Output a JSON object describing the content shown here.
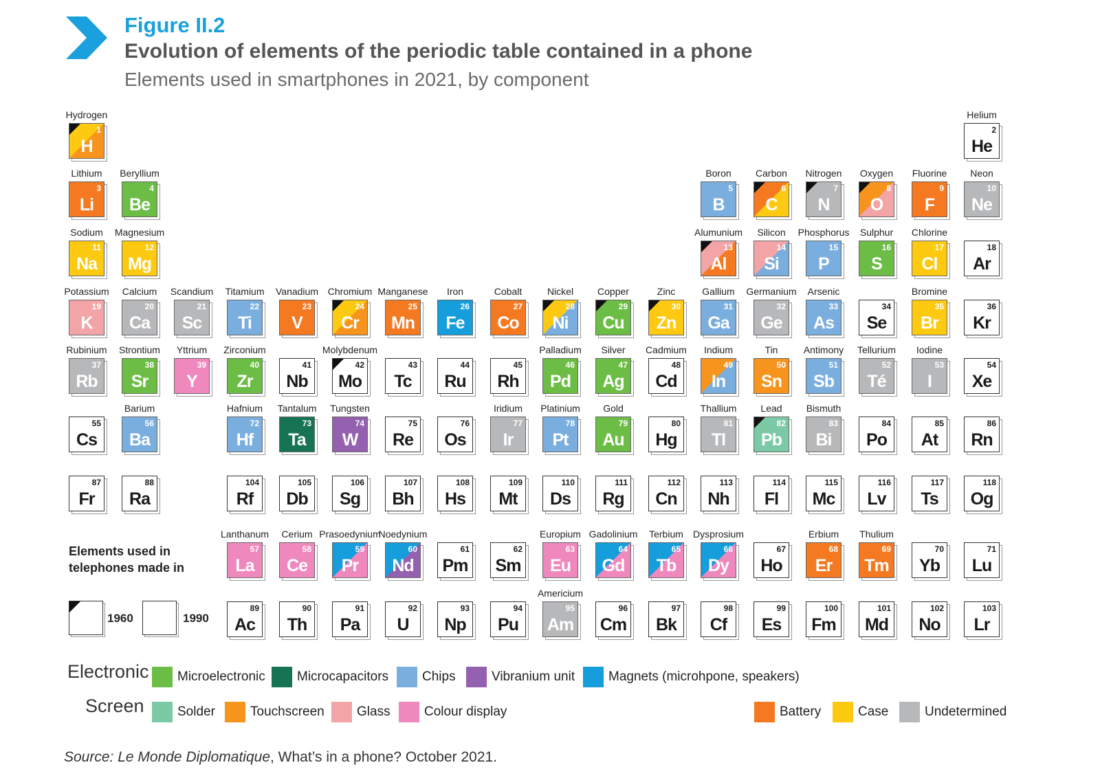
{
  "figure": {
    "label": "Figure II.2",
    "title": "Evolution of elements of the periodic table contained in a phone",
    "subtitle": "Elements used in smartphones in 2021, by component"
  },
  "colors": {
    "microelectronic": "#6cbd45",
    "microcapacitors": "#167455",
    "chips": "#7aaede",
    "vibranium": "#9460b0",
    "magnets": "#159ddc",
    "solder": "#7cc9a6",
    "touchscreen": "#f7941d",
    "glass": "#f3a4a7",
    "colour_display": "#ef88bd",
    "battery": "#f47921",
    "case": "#fdc911",
    "undetermined": "#b7b8ba"
  },
  "elements": [
    {
      "s": "H",
      "n": 1,
      "name": "Hydrogen",
      "r": 0,
      "c": 0,
      "fill": [
        "case",
        "touchscreen"
      ],
      "since": "1960"
    },
    {
      "s": "He",
      "n": 2,
      "name": "Helium",
      "r": 0,
      "c": 17
    },
    {
      "s": "Li",
      "n": 3,
      "name": "Lithium",
      "r": 1,
      "c": 0,
      "fill": [
        "battery"
      ]
    },
    {
      "s": "Be",
      "n": 4,
      "name": "Beryllium",
      "r": 1,
      "c": 1,
      "fill": [
        "microelectronic"
      ]
    },
    {
      "s": "B",
      "n": 5,
      "name": "Boron",
      "r": 1,
      "c": 12,
      "fill": [
        "chips"
      ]
    },
    {
      "s": "C",
      "n": 6,
      "name": "Carbon",
      "r": 1,
      "c": 13,
      "fill": [
        "battery",
        "case"
      ],
      "since": "1960"
    },
    {
      "s": "N",
      "n": 7,
      "name": "Nitrogen",
      "r": 1,
      "c": 14,
      "fill": [
        "undetermined"
      ],
      "since": "1960"
    },
    {
      "s": "O",
      "n": 8,
      "name": "Oxygen",
      "r": 1,
      "c": 15,
      "fill": [
        "touchscreen",
        "glass"
      ],
      "since": "1960"
    },
    {
      "s": "F",
      "n": 9,
      "name": "Fluorine",
      "r": 1,
      "c": 16,
      "fill": [
        "battery"
      ]
    },
    {
      "s": "Ne",
      "n": 10,
      "name": "Neon",
      "r": 1,
      "c": 17,
      "fill": [
        "undetermined"
      ]
    },
    {
      "s": "Na",
      "n": 11,
      "name": "Sodium",
      "r": 2,
      "c": 0,
      "fill": [
        "case"
      ]
    },
    {
      "s": "Mg",
      "n": 12,
      "name": "Magnesium",
      "r": 2,
      "c": 1,
      "fill": [
        "case"
      ]
    },
    {
      "s": "Al",
      "n": 13,
      "name": "Alumunium",
      "r": 2,
      "c": 12,
      "fill": [
        "glass",
        "battery"
      ],
      "since": "1960"
    },
    {
      "s": "Si",
      "n": 14,
      "name": "Silicon",
      "r": 2,
      "c": 13,
      "fill": [
        "glass",
        "chips"
      ]
    },
    {
      "s": "P",
      "n": 15,
      "name": "Phosphorus",
      "r": 2,
      "c": 14,
      "fill": [
        "chips"
      ]
    },
    {
      "s": "S",
      "n": 16,
      "name": "Sulphur",
      "r": 2,
      "c": 15,
      "fill": [
        "microelectronic"
      ]
    },
    {
      "s": "Cl",
      "n": 17,
      "name": "Chlorine",
      "r": 2,
      "c": 16,
      "fill": [
        "case"
      ]
    },
    {
      "s": "Ar",
      "n": 18,
      "name": "",
      "r": 2,
      "c": 17
    },
    {
      "s": "K",
      "n": 19,
      "name": "Potassium",
      "r": 3,
      "c": 0,
      "fill": [
        "glass"
      ]
    },
    {
      "s": "Ca",
      "n": 20,
      "name": "Calcium",
      "r": 3,
      "c": 1,
      "fill": [
        "undetermined"
      ]
    },
    {
      "s": "Sc",
      "n": 21,
      "name": "Scandium",
      "r": 3,
      "c": 2,
      "fill": [
        "undetermined"
      ]
    },
    {
      "s": "Ti",
      "n": 22,
      "name": "Titamium",
      "r": 3,
      "c": 3,
      "fill": [
        "chips"
      ]
    },
    {
      "s": "V",
      "n": 23,
      "name": "Vanadium",
      "r": 3,
      "c": 4,
      "fill": [
        "battery"
      ]
    },
    {
      "s": "Cr",
      "n": 24,
      "name": "Chromium",
      "r": 3,
      "c": 5,
      "fill": [
        "case",
        "touchscreen"
      ],
      "since": "1960"
    },
    {
      "s": "Mn",
      "n": 25,
      "name": "Manganese",
      "r": 3,
      "c": 6,
      "fill": [
        "battery"
      ]
    },
    {
      "s": "Fe",
      "n": 26,
      "name": "Iron",
      "r": 3,
      "c": 7,
      "fill": [
        "magnets"
      ]
    },
    {
      "s": "Co",
      "n": 27,
      "name": "Cobalt",
      "r": 3,
      "c": 8,
      "fill": [
        "battery"
      ]
    },
    {
      "s": "Ni",
      "n": 28,
      "name": "Nickel",
      "r": 3,
      "c": 9,
      "fill": [
        "case",
        "chips"
      ],
      "since": "1960"
    },
    {
      "s": "Cu",
      "n": 29,
      "name": "Copper",
      "r": 3,
      "c": 10,
      "fill": [
        "microelectronic"
      ],
      "since": "1960"
    },
    {
      "s": "Zn",
      "n": 30,
      "name": "Zinc",
      "r": 3,
      "c": 11,
      "fill": [
        "case"
      ],
      "since": "1960"
    },
    {
      "s": "Ga",
      "n": 31,
      "name": "Gallium",
      "r": 3,
      "c": 12,
      "fill": [
        "chips"
      ]
    },
    {
      "s": "Ge",
      "n": 32,
      "name": "Germanium",
      "r": 3,
      "c": 13,
      "fill": [
        "undetermined"
      ]
    },
    {
      "s": "As",
      "n": 33,
      "name": "Arsenic",
      "r": 3,
      "c": 14,
      "fill": [
        "chips"
      ]
    },
    {
      "s": "Se",
      "n": 34,
      "name": "",
      "r": 3,
      "c": 15
    },
    {
      "s": "Br",
      "n": 35,
      "name": "Bromine",
      "r": 3,
      "c": 16,
      "fill": [
        "case"
      ]
    },
    {
      "s": "Kr",
      "n": 36,
      "name": "",
      "r": 3,
      "c": 17
    },
    {
      "s": "Rb",
      "n": 37,
      "name": "Rubinium",
      "r": 4,
      "c": 0,
      "fill": [
        "undetermined"
      ]
    },
    {
      "s": "Sr",
      "n": 38,
      "name": "Strontium",
      "r": 4,
      "c": 1,
      "fill": [
        "microelectronic"
      ]
    },
    {
      "s": "Y",
      "n": 39,
      "name": "Yttrium",
      "r": 4,
      "c": 2,
      "fill": [
        "colour_display"
      ]
    },
    {
      "s": "Zr",
      "n": 40,
      "name": "Zirconium",
      "r": 4,
      "c": 3,
      "fill": [
        "microelectronic"
      ]
    },
    {
      "s": "Nb",
      "n": 41,
      "name": "",
      "r": 4,
      "c": 4
    },
    {
      "s": "Mo",
      "n": 42,
      "name": "Molybdenum",
      "r": 4,
      "c": 5,
      "since": "1960"
    },
    {
      "s": "Tc",
      "n": 43,
      "name": "",
      "r": 4,
      "c": 6
    },
    {
      "s": "Ru",
      "n": 44,
      "name": "",
      "r": 4,
      "c": 7
    },
    {
      "s": "Rh",
      "n": 45,
      "name": "",
      "r": 4,
      "c": 8
    },
    {
      "s": "Pd",
      "n": 46,
      "name": "Palladium",
      "r": 4,
      "c": 9,
      "fill": [
        "microelectronic"
      ]
    },
    {
      "s": "Ag",
      "n": 47,
      "name": "Silver",
      "r": 4,
      "c": 10,
      "fill": [
        "microelectronic"
      ]
    },
    {
      "s": "Cd",
      "n": 48,
      "name": "Cadmium",
      "r": 4,
      "c": 11
    },
    {
      "s": "In",
      "n": 49,
      "name": "Indium",
      "r": 4,
      "c": 12,
      "fill": [
        "touchscreen",
        "chips"
      ]
    },
    {
      "s": "Sn",
      "n": 50,
      "name": "Tin",
      "r": 4,
      "c": 13,
      "fill": [
        "touchscreen"
      ]
    },
    {
      "s": "Sb",
      "n": 51,
      "name": "Antimony",
      "r": 4,
      "c": 14,
      "fill": [
        "chips"
      ]
    },
    {
      "s": "Te",
      "n": 52,
      "name": "Tellurium",
      "r": 4,
      "c": 15,
      "fill": [
        "undetermined"
      ],
      "label": "Té"
    },
    {
      "s": "I",
      "n": 53,
      "name": "Iodine",
      "r": 4,
      "c": 16,
      "fill": [
        "undetermined"
      ]
    },
    {
      "s": "Xe",
      "n": 54,
      "name": "",
      "r": 4,
      "c": 17
    },
    {
      "s": "Cs",
      "n": 55,
      "name": "",
      "r": 5,
      "c": 0
    },
    {
      "s": "Ba",
      "n": 56,
      "name": "Barium",
      "r": 5,
      "c": 1,
      "fill": [
        "chips"
      ]
    },
    {
      "s": "Hf",
      "n": 72,
      "name": "Hafnium",
      "r": 5,
      "c": 3,
      "fill": [
        "chips"
      ]
    },
    {
      "s": "Ta",
      "n": 73,
      "name": "Tantalum",
      "r": 5,
      "c": 4,
      "fill": [
        "microcapacitors"
      ]
    },
    {
      "s": "W",
      "n": 74,
      "name": "Tungsten",
      "r": 5,
      "c": 5,
      "fill": [
        "vibranium"
      ]
    },
    {
      "s": "Re",
      "n": 75,
      "name": "",
      "r": 5,
      "c": 6
    },
    {
      "s": "Os",
      "n": 76,
      "name": "",
      "r": 5,
      "c": 7
    },
    {
      "s": "Ir",
      "n": 77,
      "name": "Iridium",
      "r": 5,
      "c": 8,
      "fill": [
        "undetermined"
      ]
    },
    {
      "s": "Pt",
      "n": 78,
      "name": "Platinium",
      "r": 5,
      "c": 9,
      "fill": [
        "chips"
      ]
    },
    {
      "s": "Au",
      "n": 79,
      "name": "Gold",
      "r": 5,
      "c": 10,
      "fill": [
        "microelectronic"
      ]
    },
    {
      "s": "Hg",
      "n": 80,
      "name": "",
      "r": 5,
      "c": 11
    },
    {
      "s": "Tl",
      "n": 81,
      "name": "Thallium",
      "r": 5,
      "c": 12,
      "fill": [
        "undetermined"
      ]
    },
    {
      "s": "Pb",
      "n": 82,
      "name": "Lead",
      "r": 5,
      "c": 13,
      "fill": [
        "solder"
      ],
      "since": "1960"
    },
    {
      "s": "Bi",
      "n": 83,
      "name": "Bismuth",
      "r": 5,
      "c": 14,
      "fill": [
        "undetermined"
      ]
    },
    {
      "s": "Po",
      "n": 84,
      "name": "",
      "r": 5,
      "c": 15
    },
    {
      "s": "At",
      "n": 85,
      "name": "",
      "r": 5,
      "c": 16
    },
    {
      "s": "Rn",
      "n": 86,
      "name": "",
      "r": 5,
      "c": 17
    },
    {
      "s": "Fr",
      "n": 87,
      "name": "",
      "r": 6,
      "c": 0
    },
    {
      "s": "Ra",
      "n": 88,
      "name": "",
      "r": 6,
      "c": 1
    },
    {
      "s": "Rf",
      "n": 104,
      "name": "",
      "r": 6,
      "c": 3
    },
    {
      "s": "Db",
      "n": 105,
      "name": "",
      "r": 6,
      "c": 4
    },
    {
      "s": "Sg",
      "n": 106,
      "name": "",
      "r": 6,
      "c": 5
    },
    {
      "s": "Bh",
      "n": 107,
      "name": "",
      "r": 6,
      "c": 6
    },
    {
      "s": "Hs",
      "n": 108,
      "name": "",
      "r": 6,
      "c": 7
    },
    {
      "s": "Mt",
      "n": 109,
      "name": "",
      "r": 6,
      "c": 8
    },
    {
      "s": "Ds",
      "n": 110,
      "name": "",
      "r": 6,
      "c": 9
    },
    {
      "s": "Rg",
      "n": 111,
      "name": "",
      "r": 6,
      "c": 10
    },
    {
      "s": "Cn",
      "n": 112,
      "name": "",
      "r": 6,
      "c": 11
    },
    {
      "s": "Nh",
      "n": 113,
      "name": "",
      "r": 6,
      "c": 12
    },
    {
      "s": "Fl",
      "n": 114,
      "name": "",
      "r": 6,
      "c": 13
    },
    {
      "s": "Mc",
      "n": 115,
      "name": "",
      "r": 6,
      "c": 14
    },
    {
      "s": "Lv",
      "n": 116,
      "name": "",
      "r": 6,
      "c": 15
    },
    {
      "s": "Ts",
      "n": 117,
      "name": "",
      "r": 6,
      "c": 16
    },
    {
      "s": "Og",
      "n": 118,
      "name": "",
      "r": 6,
      "c": 17
    },
    {
      "s": "La",
      "n": 57,
      "name": "Lanthanum",
      "r": 7,
      "c": 3,
      "fill": [
        "colour_display"
      ]
    },
    {
      "s": "Ce",
      "n": 58,
      "name": "Cerium",
      "r": 7,
      "c": 4,
      "fill": [
        "colour_display"
      ]
    },
    {
      "s": "Pr",
      "n": 59,
      "name": "Prasoedynium",
      "r": 7,
      "c": 5,
      "fill": [
        "magnets",
        "colour_display"
      ]
    },
    {
      "s": "Nd",
      "n": 60,
      "name": "Noedynium",
      "r": 7,
      "c": 6,
      "fill": [
        "magnets",
        "vibranium"
      ]
    },
    {
      "s": "Pm",
      "n": 61,
      "name": "",
      "r": 7,
      "c": 7
    },
    {
      "s": "Sm",
      "n": 62,
      "name": "",
      "r": 7,
      "c": 8
    },
    {
      "s": "Eu",
      "n": 63,
      "name": "Europium",
      "r": 7,
      "c": 9,
      "fill": [
        "colour_display"
      ]
    },
    {
      "s": "Gd",
      "n": 64,
      "name": "Gadolinium",
      "r": 7,
      "c": 10,
      "fill": [
        "magnets",
        "colour_display"
      ]
    },
    {
      "s": "Tb",
      "n": 65,
      "name": "Terbium",
      "r": 7,
      "c": 11,
      "fill": [
        "magnets",
        "colour_display"
      ]
    },
    {
      "s": "Dy",
      "n": 66,
      "name": "Dysprosium",
      "r": 7,
      "c": 12,
      "fill": [
        "magnets",
        "colour_display"
      ]
    },
    {
      "s": "Ho",
      "n": 67,
      "name": "",
      "r": 7,
      "c": 13
    },
    {
      "s": "Er",
      "n": 68,
      "name": "Erbium",
      "r": 7,
      "c": 14,
      "fill": [
        "battery"
      ]
    },
    {
      "s": "Tm",
      "n": 69,
      "name": "Thulium",
      "r": 7,
      "c": 15,
      "fill": [
        "battery"
      ]
    },
    {
      "s": "Yb",
      "n": 70,
      "name": "",
      "r": 7,
      "c": 16
    },
    {
      "s": "Lu",
      "n": 71,
      "name": "",
      "r": 7,
      "c": 17
    },
    {
      "s": "Ac",
      "n": 89,
      "name": "",
      "r": 8,
      "c": 3
    },
    {
      "s": "Th",
      "n": 90,
      "name": "",
      "r": 8,
      "c": 4
    },
    {
      "s": "Pa",
      "n": 91,
      "name": "",
      "r": 8,
      "c": 5
    },
    {
      "s": "U",
      "n": 92,
      "name": "",
      "r": 8,
      "c": 6
    },
    {
      "s": "Np",
      "n": 93,
      "name": "",
      "r": 8,
      "c": 7
    },
    {
      "s": "Pu",
      "n": 94,
      "name": "",
      "r": 8,
      "c": 8
    },
    {
      "s": "Am",
      "n": 95,
      "name": "Americium",
      "r": 8,
      "c": 9,
      "fill": [
        "undetermined"
      ]
    },
    {
      "s": "Cm",
      "n": 96,
      "name": "",
      "r": 8,
      "c": 10
    },
    {
      "s": "Bk",
      "n": 97,
      "name": "",
      "r": 8,
      "c": 11
    },
    {
      "s": "Cf",
      "n": 98,
      "name": "",
      "r": 8,
      "c": 12
    },
    {
      "s": "Es",
      "n": 99,
      "name": "",
      "r": 8,
      "c": 13
    },
    {
      "s": "Fm",
      "n": 100,
      "name": "",
      "r": 8,
      "c": 14
    },
    {
      "s": "Md",
      "n": 101,
      "name": "",
      "r": 8,
      "c": 15
    },
    {
      "s": "No",
      "n": 102,
      "name": "",
      "r": 8,
      "c": 16
    },
    {
      "s": "Lr",
      "n": 103,
      "name": "",
      "r": 8,
      "c": 17
    }
  ],
  "key": {
    "line1": "Elements used in",
    "line2": "telephones made in",
    "year_1960": "1960",
    "year_1990": "1990"
  },
  "legend": {
    "electronic_heading": "Electronic",
    "screen_heading": "Screen",
    "electronic": [
      {
        "color_key": "microelectronic",
        "label": "Microelectronic"
      },
      {
        "color_key": "microcapacitors",
        "label": "Microcapacitors"
      },
      {
        "color_key": "chips",
        "label": "Chips"
      },
      {
        "color_key": "vibranium",
        "label": "Vibranium unit"
      },
      {
        "color_key": "magnets",
        "label": "Magnets (microhpone, speakers)"
      }
    ],
    "screen": [
      {
        "color_key": "solder",
        "label": "Solder"
      },
      {
        "color_key": "touchscreen",
        "label": "Touchscreen"
      },
      {
        "color_key": "glass",
        "label": "Glass"
      },
      {
        "color_key": "colour_display",
        "label": "Colour display"
      }
    ],
    "other": [
      {
        "color_key": "battery",
        "label": "Battery"
      },
      {
        "color_key": "case",
        "label": "Case"
      },
      {
        "color_key": "undetermined",
        "label": "Undetermined"
      }
    ]
  },
  "source": {
    "prefix": "Source: Le Monde Diplomatique",
    "rest": ", What’s in a phone? October 2021."
  }
}
